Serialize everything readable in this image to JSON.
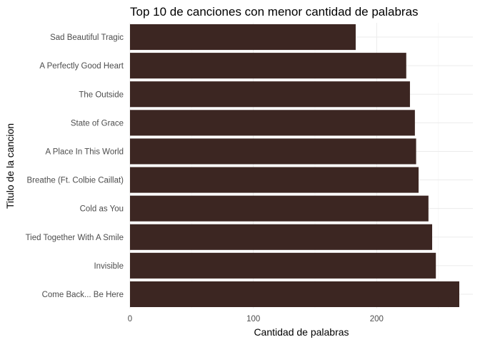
{
  "chart_data": {
    "type": "bar",
    "orientation": "horizontal",
    "title": "Top 10 de canciones con menor cantidad de palabras",
    "xlabel": "Cantidad de palabras",
    "ylabel": "Titulo de la cancion",
    "categories": [
      "Sad Beautiful Tragic",
      "A Perfectly Good Heart",
      "The Outside",
      "State of Grace",
      "A Place In This World",
      "Breathe (Ft. Colbie Caillat)",
      "Cold as You",
      "Tied Together With A Smile",
      "Invisible",
      "Come Back... Be Here"
    ],
    "values": [
      183,
      224,
      227,
      231,
      232,
      234,
      242,
      245,
      248,
      267
    ],
    "xlim": [
      0,
      278
    ],
    "xticks": [
      0,
      100,
      200
    ],
    "grid": true,
    "bar_color": "#3c2622",
    "background": "#ffffff"
  }
}
